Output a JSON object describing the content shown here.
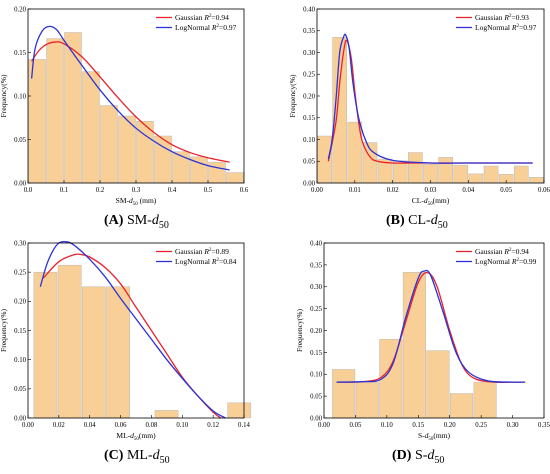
{
  "colors": {
    "bar_fill": "#f9cf98",
    "bar_stroke": "#b9b9b9",
    "gaussian": "#e8222b",
    "lognormal": "#2b32d6"
  },
  "chart_data": [
    {
      "id": "A",
      "type": "bar",
      "caption": {
        "letter": "(A)",
        "text": "SM-",
        "sub": "d",
        "subsub": "50"
      },
      "ylabel": "Frequency(%)",
      "xlabel": {
        "pre": "SM-",
        "var": "d",
        "sub": "50",
        "post": " (mm)"
      },
      "xlim": [
        0,
        0.6
      ],
      "ylim": [
        0,
        0.2
      ],
      "xticks": [
        "0.0",
        "0.1",
        "0.2",
        "0.3",
        "0.4",
        "0.5",
        "0.6"
      ],
      "yticks": [
        "0.00",
        "0.05",
        "0.10",
        "0.15",
        "0.20"
      ],
      "bin_width": 0.05,
      "bins": [
        0.025,
        0.075,
        0.125,
        0.175,
        0.225,
        0.275,
        0.325,
        0.375,
        0.425,
        0.475,
        0.525,
        0.575
      ],
      "values": [
        0.142,
        0.166,
        0.173,
        0.128,
        0.089,
        0.077,
        0.071,
        0.054,
        0.036,
        0.03,
        0.024,
        0.012
      ],
      "series": [
        {
          "name": "Gaussian",
          "r2": "0.94",
          "color": "#e8222b",
          "x": [
            0.01,
            0.03,
            0.05,
            0.075,
            0.1,
            0.15,
            0.2,
            0.25,
            0.3,
            0.35,
            0.4,
            0.45,
            0.5,
            0.56
          ],
          "y": [
            0.14,
            0.152,
            0.159,
            0.162,
            0.16,
            0.145,
            0.122,
            0.098,
            0.076,
            0.058,
            0.044,
            0.035,
            0.029,
            0.024
          ]
        },
        {
          "name": "LogNormal",
          "r2": "0.97",
          "color": "#2b32d6",
          "x": [
            0.01,
            0.02,
            0.04,
            0.06,
            0.08,
            0.1,
            0.15,
            0.2,
            0.25,
            0.3,
            0.35,
            0.4,
            0.45,
            0.5,
            0.56
          ],
          "y": [
            0.12,
            0.155,
            0.175,
            0.18,
            0.176,
            0.164,
            0.135,
            0.107,
            0.083,
            0.063,
            0.048,
            0.036,
            0.027,
            0.02,
            0.015
          ]
        }
      ],
      "legend_position": "top-right"
    },
    {
      "id": "B",
      "type": "bar",
      "caption": {
        "letter": "(B)",
        "text": "CL-",
        "sub": "d",
        "subsub": "50"
      },
      "ylabel": "Frequency(%)",
      "xlabel": {
        "pre": "CL-",
        "var": "d",
        "sub": "50",
        "post": "(mm)"
      },
      "xlim": [
        0,
        0.06
      ],
      "ylim": [
        0,
        0.4
      ],
      "xticks": [
        "0.00",
        "0.01",
        "0.02",
        "0.03",
        "0.04",
        "0.05",
        "0.06"
      ],
      "yticks": [
        "0.00",
        "0.05",
        "0.10",
        "0.15",
        "0.20",
        "0.25",
        "0.30",
        "0.35",
        "0.40"
      ],
      "bin_width": 0.004,
      "bins": [
        0.002,
        0.006,
        0.01,
        0.014,
        0.018,
        0.022,
        0.026,
        0.03,
        0.034,
        0.038,
        0.042,
        0.046,
        0.05,
        0.054,
        0.058
      ],
      "values": [
        0.108,
        0.335,
        0.14,
        0.093,
        0.055,
        0.051,
        0.07,
        0.043,
        0.059,
        0.041,
        0.021,
        0.039,
        0.02,
        0.039,
        0.013
      ],
      "series": [
        {
          "name": "Gaussian",
          "r2": "0.93",
          "color": "#e8222b",
          "x": [
            0.003,
            0.005,
            0.006,
            0.007,
            0.0078,
            0.009,
            0.01,
            0.011,
            0.012,
            0.014,
            0.016,
            0.02,
            0.025,
            0.03,
            0.04,
            0.05,
            0.057
          ],
          "y": [
            0.05,
            0.14,
            0.23,
            0.3,
            0.328,
            0.29,
            0.21,
            0.14,
            0.095,
            0.06,
            0.05,
            0.046,
            0.046,
            0.046,
            0.046,
            0.046,
            0.046
          ]
        },
        {
          "name": "LogNormal",
          "r2": "0.97",
          "color": "#2b32d6",
          "x": [
            0.003,
            0.004,
            0.005,
            0.006,
            0.007,
            0.0076,
            0.0085,
            0.0095,
            0.011,
            0.013,
            0.015,
            0.02,
            0.03,
            0.04,
            0.05,
            0.057
          ],
          "y": [
            0.055,
            0.1,
            0.19,
            0.3,
            0.335,
            0.34,
            0.31,
            0.23,
            0.15,
            0.095,
            0.07,
            0.052,
            0.046,
            0.046,
            0.046,
            0.046
          ]
        }
      ],
      "legend_position": "top-right"
    },
    {
      "id": "C",
      "type": "bar",
      "caption": {
        "letter": "(C)",
        "text": "ML-",
        "sub": "d",
        "subsub": "50"
      },
      "ylabel": "Frequency(%)",
      "xlabel": {
        "pre": "ML-",
        "var": "d",
        "sub": "50",
        "post": "(mm)"
      },
      "xlim": [
        0,
        0.14
      ],
      "ylim": [
        0,
        0.3
      ],
      "xticks": [
        "0.00",
        "0.02",
        "0.04",
        "0.06",
        "0.08",
        "0.10",
        "0.12",
        "0.14"
      ],
      "yticks": [
        "0.00",
        "0.05",
        "0.10",
        "0.15",
        "0.20",
        "0.25",
        "0.30"
      ],
      "bin_width": 0.0157,
      "bins": [
        0.0113,
        0.027,
        0.0427,
        0.0584,
        0.0741,
        0.0898,
        0.1055,
        0.1212,
        0.1369
      ],
      "values": [
        0.25,
        0.262,
        0.225,
        0.225,
        0.0,
        0.013,
        0.0,
        0.0,
        0.026
      ],
      "series": [
        {
          "name": "Gaussian",
          "r2": "0.89",
          "color": "#e8222b",
          "x": [
            0.01,
            0.02,
            0.03,
            0.035,
            0.04,
            0.05,
            0.06,
            0.07,
            0.08,
            0.09,
            0.1,
            0.11,
            0.12,
            0.125
          ],
          "y": [
            0.24,
            0.268,
            0.28,
            0.28,
            0.276,
            0.258,
            0.23,
            0.19,
            0.15,
            0.11,
            0.07,
            0.038,
            0.01,
            0.0
          ]
        },
        {
          "name": "LogNormal",
          "r2": "0.84",
          "color": "#2b32d6",
          "x": [
            0.008,
            0.012,
            0.016,
            0.02,
            0.025,
            0.03,
            0.04,
            0.05,
            0.06,
            0.07,
            0.08,
            0.09,
            0.1,
            0.11,
            0.12,
            0.128
          ],
          "y": [
            0.225,
            0.262,
            0.286,
            0.3,
            0.302,
            0.296,
            0.272,
            0.242,
            0.205,
            0.17,
            0.135,
            0.1,
            0.068,
            0.038,
            0.012,
            0.0
          ]
        }
      ],
      "legend_position": "top-right"
    },
    {
      "id": "D",
      "type": "bar",
      "caption": {
        "letter": "(D)",
        "text": "S-",
        "sub": "d",
        "subsub": "50"
      },
      "ylabel": "Frequency(%)",
      "xlabel": {
        "pre": "S-",
        "var": "d",
        "sub": "50",
        "post": "(mm)"
      },
      "xlim": [
        0,
        0.35
      ],
      "ylim": [
        0,
        0.4
      ],
      "xticks": [
        "0.00",
        "0.05",
        "0.10",
        "0.15",
        "0.20",
        "0.25",
        "0.30",
        "0.35"
      ],
      "yticks": [
        "0.00",
        "0.05",
        "0.10",
        "0.15",
        "0.20",
        "0.25",
        "0.30",
        "0.35",
        "0.40"
      ],
      "bin_width": 0.0375,
      "bins": [
        0.0313,
        0.0688,
        0.1063,
        0.1438,
        0.1813,
        0.2188,
        0.2563,
        0.2938
      ],
      "values": [
        0.111,
        0.082,
        0.18,
        0.333,
        0.154,
        0.056,
        0.082,
        0.0
      ],
      "series": [
        {
          "name": "Gaussian",
          "r2": "0.94",
          "color": "#e8222b",
          "x": [
            0.02,
            0.06,
            0.09,
            0.11,
            0.13,
            0.15,
            0.165,
            0.18,
            0.2,
            0.22,
            0.24,
            0.27,
            0.3,
            0.32
          ],
          "y": [
            0.082,
            0.083,
            0.092,
            0.13,
            0.22,
            0.31,
            0.332,
            0.3,
            0.2,
            0.12,
            0.09,
            0.082,
            0.082,
            0.082
          ]
        },
        {
          "name": "LogNormal",
          "r2": "0.99",
          "color": "#2b32d6",
          "x": [
            0.02,
            0.06,
            0.09,
            0.11,
            0.13,
            0.15,
            0.16,
            0.17,
            0.19,
            0.21,
            0.23,
            0.26,
            0.3,
            0.32
          ],
          "y": [
            0.082,
            0.083,
            0.088,
            0.125,
            0.23,
            0.32,
            0.336,
            0.325,
            0.24,
            0.15,
            0.105,
            0.085,
            0.082,
            0.082
          ]
        }
      ],
      "legend_position": "top-right"
    }
  ]
}
